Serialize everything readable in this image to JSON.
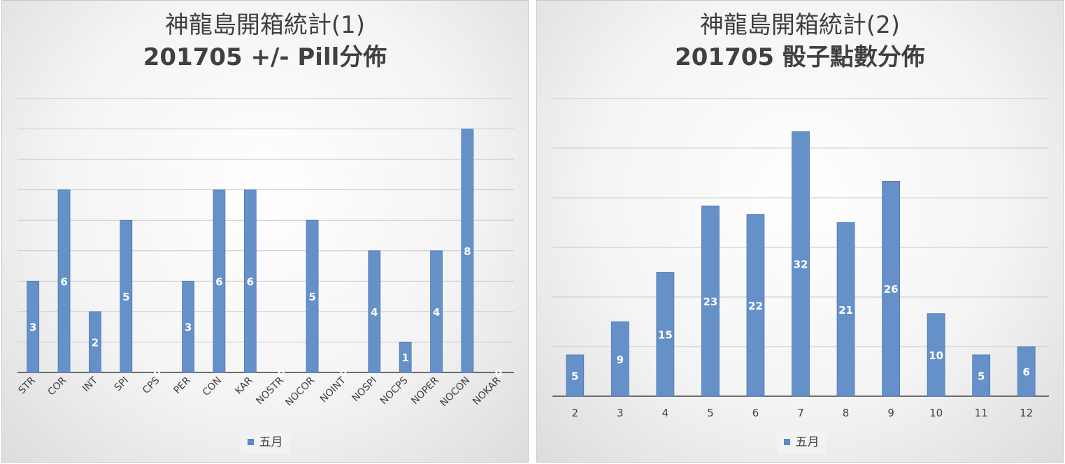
{
  "colors": {
    "bar": "#6590c8",
    "bar_stroke": "#4f7ab8",
    "grid": "#c9c9c9",
    "axis": "#404040",
    "label": "#ffffff"
  },
  "chart_data": [
    {
      "type": "bar",
      "title": "神龍島開箱統計(1)",
      "subtitle": "201705 +/- Pill分佈",
      "categories": [
        "STR",
        "COR",
        "INT",
        "SPI",
        "CPS",
        "PER",
        "CON",
        "KAR",
        "NOSTR",
        "NOCOR",
        "NOINT",
        "NOSPI",
        "NOCPS",
        "NOPER",
        "NOCON",
        "NOKAR"
      ],
      "series": [
        {
          "name": "五月",
          "values": [
            3,
            6,
            2,
            5,
            0,
            3,
            6,
            6,
            0,
            5,
            0,
            4,
            1,
            4,
            8,
            0
          ]
        }
      ],
      "ylim": [
        0,
        9
      ],
      "grid": true,
      "legend": "bottom",
      "y_tick_labels": false,
      "data_labels": true
    },
    {
      "type": "bar",
      "title": "神龍島開箱統計(2)",
      "subtitle": "201705 骰子點數分佈",
      "categories": [
        "2",
        "3",
        "4",
        "5",
        "6",
        "7",
        "8",
        "9",
        "10",
        "11",
        "12"
      ],
      "series": [
        {
          "name": "五月",
          "values": [
            5,
            9,
            15,
            23,
            22,
            32,
            21,
            26,
            10,
            5,
            6
          ]
        }
      ],
      "ylim": [
        0,
        36
      ],
      "grid": true,
      "legend": "bottom",
      "y_tick_labels": false,
      "data_labels": true
    }
  ]
}
